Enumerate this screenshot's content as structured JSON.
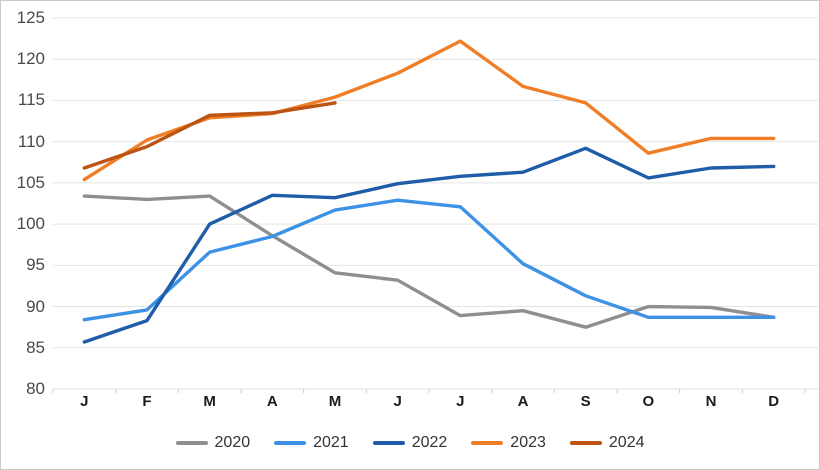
{
  "chart_data": {
    "type": "line",
    "title": "",
    "xlabel": "",
    "ylabel": "",
    "x_categories": [
      "J",
      "F",
      "M",
      "A",
      "M",
      "J",
      "J",
      "A",
      "S",
      "O",
      "N",
      "D"
    ],
    "y_ticks": [
      80,
      85,
      90,
      95,
      100,
      105,
      110,
      115,
      120,
      125
    ],
    "ylim": [
      80,
      125
    ],
    "grid": "horizontal",
    "legend_position": "bottom",
    "series": [
      {
        "name": "2020",
        "color": "#8f8f8f",
        "values": [
          103.4,
          103.0,
          103.4,
          98.6,
          94.1,
          93.2,
          88.9,
          89.5,
          87.5,
          90.0,
          89.9,
          88.7
        ]
      },
      {
        "name": "2021",
        "color": "#3e92e5",
        "values": [
          88.4,
          89.6,
          96.6,
          98.5,
          101.7,
          102.9,
          102.1,
          95.2,
          91.3,
          88.7,
          88.7,
          88.7
        ]
      },
      {
        "name": "2022",
        "color": "#1f5da9",
        "values": [
          85.7,
          88.3,
          100.0,
          103.5,
          103.2,
          104.9,
          105.8,
          106.3,
          109.2,
          105.6,
          106.8,
          107.0
        ]
      },
      {
        "name": "2023",
        "color": "#f07e26",
        "values": [
          105.4,
          110.2,
          112.9,
          113.4,
          115.4,
          118.3,
          122.2,
          116.7,
          114.7,
          108.6,
          110.4,
          110.4
        ]
      },
      {
        "name": "2024",
        "color": "#bc5514",
        "values": [
          106.8,
          109.4,
          113.2,
          113.5,
          114.7
        ]
      }
    ]
  },
  "colors": {
    "gridline": "#e4e4e4",
    "axis_line": "#dedede",
    "tick_mark": "#cfcfcf",
    "y_label": "#4a4a4a",
    "x_label": "#1c1c1c",
    "legend_label": "#333333",
    "border": "#c9c9c9",
    "background": "#ffffff"
  }
}
